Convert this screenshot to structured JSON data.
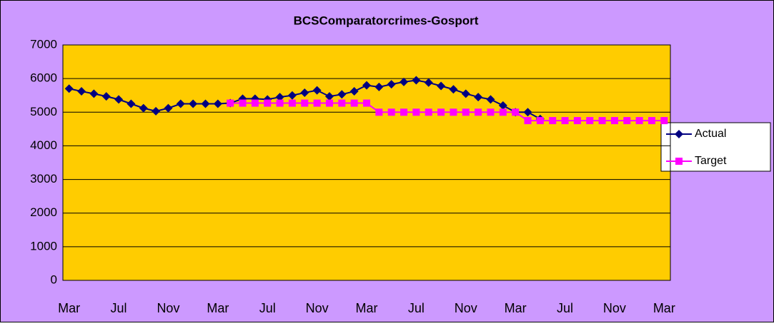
{
  "chart_data": {
    "type": "line",
    "title": "BCSComparatorcrimes-Gosport",
    "categories": [
      "Mar",
      null,
      null,
      null,
      "Jul",
      null,
      null,
      null,
      "Nov",
      null,
      null,
      null,
      "Mar",
      null,
      null,
      null,
      "Jul",
      null,
      null,
      null,
      "Nov",
      null,
      null,
      null,
      "Mar",
      null,
      null,
      null,
      "Jul",
      null,
      null,
      null,
      "Nov",
      null,
      null,
      null,
      "Mar",
      null,
      null,
      null,
      "Jul",
      null,
      null,
      null,
      "Nov",
      null,
      null,
      null,
      "Mar"
    ],
    "series": [
      {
        "name": "Actual",
        "color": "#000080",
        "marker": "diamond",
        "values": [
          5700,
          5620,
          5550,
          5470,
          5380,
          5250,
          5120,
          5030,
          5120,
          5250,
          5250,
          5250,
          5250,
          5270,
          5400,
          5400,
          5380,
          5450,
          5500,
          5580,
          5650,
          5470,
          5530,
          5620,
          5800,
          5750,
          5830,
          5900,
          5950,
          5880,
          5780,
          5680,
          5550,
          5450,
          5380,
          5200,
          5000,
          5000,
          4800,
          null,
          null,
          null,
          null,
          null,
          null,
          null,
          null,
          null,
          null
        ]
      },
      {
        "name": "Target",
        "color": "#ff00ff",
        "marker": "square",
        "values": [
          null,
          null,
          null,
          null,
          null,
          null,
          null,
          null,
          null,
          null,
          null,
          null,
          null,
          5270,
          5270,
          5270,
          5270,
          5270,
          5270,
          5270,
          5270,
          5270,
          5270,
          5270,
          5270,
          5000,
          5000,
          5000,
          5000,
          5000,
          5000,
          5000,
          5000,
          5000,
          5000,
          5000,
          5000,
          4750,
          4750,
          4750,
          4750,
          4750,
          4750,
          4750,
          4750,
          4750,
          4750,
          4750,
          4750
        ]
      }
    ],
    "ylim": [
      0,
      7000
    ],
    "yticks": [
      0,
      1000,
      2000,
      3000,
      4000,
      5000,
      6000,
      7000
    ],
    "grid": true,
    "legend": "right"
  }
}
